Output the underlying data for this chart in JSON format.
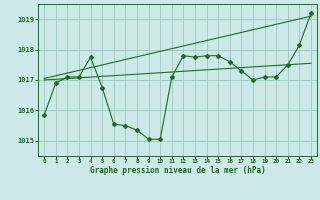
{
  "bg_color": "#cce8e8",
  "grid_color": "#99ccbb",
  "line_color": "#1a6e1a",
  "xlabel": "Graphe pression niveau de la mer (hPa)",
  "ylim": [
    1014.5,
    1019.5
  ],
  "xlim": [
    -0.5,
    23.5
  ],
  "yticks": [
    1015,
    1016,
    1017,
    1018,
    1019
  ],
  "xticks": [
    0,
    1,
    2,
    3,
    4,
    5,
    6,
    7,
    8,
    9,
    10,
    11,
    12,
    13,
    14,
    15,
    16,
    17,
    18,
    19,
    20,
    21,
    22,
    23
  ],
  "series1_x": [
    0,
    1,
    2,
    3,
    4,
    5,
    6,
    7,
    8,
    9,
    10,
    11,
    12,
    13,
    14,
    15,
    16,
    17,
    18,
    19,
    20,
    21,
    22,
    23
  ],
  "series1": [
    1015.85,
    1016.9,
    1017.1,
    1017.1,
    1017.75,
    1016.75,
    1015.55,
    1015.5,
    1015.35,
    1015.05,
    1015.05,
    1017.1,
    1017.8,
    1017.75,
    1017.8,
    1017.8,
    1017.6,
    1017.3,
    1017.0,
    1017.1,
    1017.1,
    1017.5,
    1018.15,
    1019.2
  ],
  "series2_x": [
    0,
    23
  ],
  "series2": [
    1017.05,
    1019.1
  ],
  "series3_x": [
    0,
    23
  ],
  "series3": [
    1017.0,
    1017.55
  ]
}
